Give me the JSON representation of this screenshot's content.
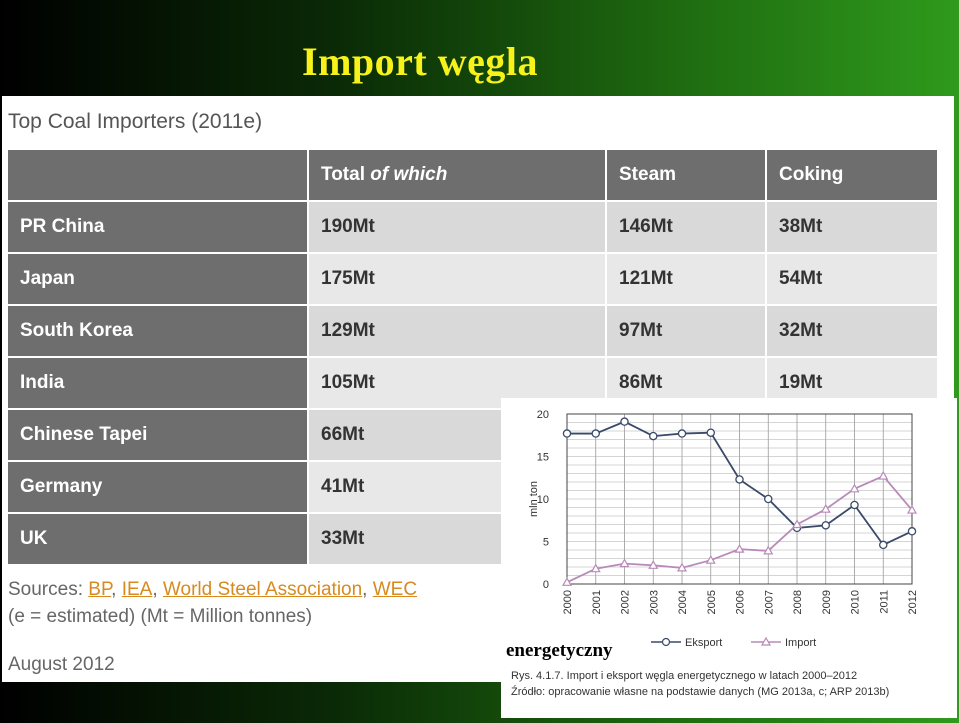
{
  "slide": {
    "title": "Import węgla"
  },
  "table": {
    "heading": "Top Coal Importers (2011e)",
    "columns": [
      "",
      "Total of which",
      "Steam",
      "Coking"
    ],
    "rows": [
      {
        "country": "PR China",
        "total": "190Mt",
        "steam": "146Mt",
        "coking": "38Mt"
      },
      {
        "country": "Japan",
        "total": "175Mt",
        "steam": "121Mt",
        "coking": "54Mt"
      },
      {
        "country": "South Korea",
        "total": "129Mt",
        "steam": "97Mt",
        "coking": "32Mt"
      },
      {
        "country": "India",
        "total": "105Mt",
        "steam": "86Mt",
        "coking": "19Mt"
      },
      {
        "country": "Chinese Tapei",
        "total": "66Mt",
        "steam": "",
        "coking": ""
      },
      {
        "country": "Germany",
        "total": "41Mt",
        "steam": "",
        "coking": ""
      },
      {
        "country": "UK",
        "total": "33Mt",
        "steam": "",
        "coking": ""
      }
    ],
    "sources_label": "Sources:",
    "sources": [
      "BP",
      "IEA",
      "World Steel Association",
      "WEC"
    ],
    "note": "(e = estimated) (Mt = Million tonnes)",
    "date": "August 2012"
  },
  "overlay_word": "energetyczny",
  "chart_data": {
    "type": "line",
    "title": "",
    "xlabel": "",
    "ylabel": "mln ton",
    "x": [
      2000,
      2001,
      2002,
      2003,
      2004,
      2005,
      2006,
      2007,
      2008,
      2009,
      2010,
      2011,
      2012
    ],
    "ylim": [
      0,
      20
    ],
    "yticks": [
      0,
      5,
      10,
      15,
      20
    ],
    "grid": true,
    "legend_position": "bottom",
    "series": [
      {
        "name": "Eksport",
        "marker": "circle",
        "color": "#3a4a6a",
        "values": [
          17.7,
          17.7,
          19.1,
          17.4,
          17.7,
          17.8,
          12.3,
          10.0,
          6.6,
          6.9,
          9.3,
          4.6,
          6.2
        ]
      },
      {
        "name": "Import",
        "marker": "triangle",
        "color": "#b88ab8",
        "values": [
          0.2,
          1.8,
          2.4,
          2.2,
          1.9,
          2.8,
          4.1,
          3.9,
          7.0,
          8.8,
          11.2,
          12.7,
          8.7
        ]
      }
    ],
    "caption_lines": [
      "Rys. 4.1.7. Import i eksport węgla energetycznego w latach 2000–2012",
      "Źródło: opracowanie własne na podstawie danych (MG 2013a, c; ARP 2013b)"
    ]
  }
}
